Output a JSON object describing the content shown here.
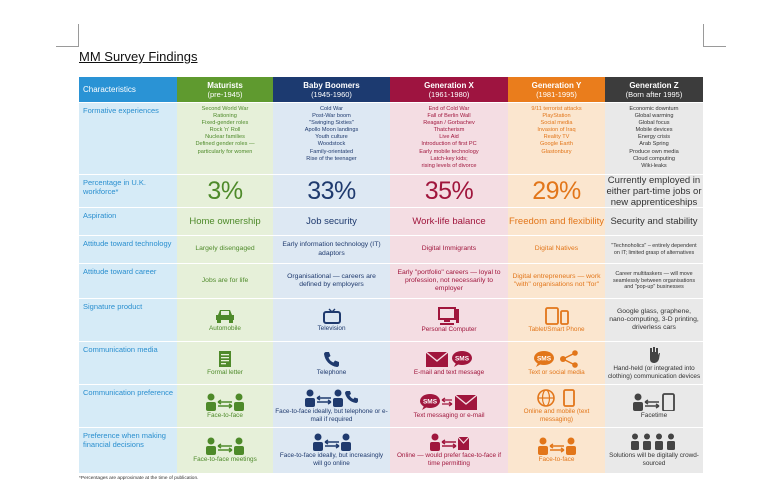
{
  "document": {
    "title": "MM Survey Findings",
    "footnote": "*Percentages are approximate at the time of publication."
  },
  "colors": {
    "label_blue": "#2a93d5",
    "maturists": "#5f9a2f",
    "baby_boomers": "#1c3a70",
    "generation_x": "#9e1440",
    "generation_y": "#ea7d1c",
    "generation_z": "#3c3c3c"
  },
  "table": {
    "row_labels": {
      "characteristics": "Characteristics",
      "formative": "Formative experiences",
      "percentage": "Percentage in U.K. workforce*",
      "aspiration": "Aspiration",
      "technology": "Attitude toward technology",
      "career": "Attitude toward career",
      "product": "Signature product",
      "media": "Communication media",
      "comm_pref": "Communication preference",
      "financial": "Preference when making financial decisions"
    },
    "generations": {
      "maturists": {
        "name": "Maturists",
        "years": "(pre-1945)",
        "formative": [
          "Second World War",
          "Rationing",
          "Fixed-gender roles",
          "Rock 'n' Roll",
          "Nuclear families",
          "Defined gender roles —",
          "particularly for women"
        ],
        "percentage": "3%",
        "aspiration": "Home ownership",
        "technology": "Largely disengaged",
        "career": "Jobs are for life",
        "product": "Automobile",
        "media": "Formal letter",
        "comm_pref": "Face-to-face",
        "financial": "Face-to-face meetings"
      },
      "baby_boomers": {
        "name": "Baby Boomers",
        "years": "(1945-1960)",
        "formative": [
          "Cold War",
          "Post-War boom",
          "\"Swinging Sixties\"",
          "Apollo Moon landings",
          "Youth culture",
          "Woodstock",
          "Family-orientated",
          "Rise of the teenager"
        ],
        "percentage": "33%",
        "aspiration": "Job security",
        "technology": "Early information technology (IT) adaptors",
        "career": "Organisational — careers are defined by employers",
        "product": "Television",
        "media": "Telephone",
        "comm_pref": "Face-to-face ideally, but telephone or e-mail if required",
        "financial": "Face-to-face ideally, but increasingly will go online"
      },
      "generation_x": {
        "name": "Generation X",
        "years": "(1961-1980)",
        "formative": [
          "End of Cold War",
          "Fall of Berlin Wall",
          "Reagan / Gorbachev",
          "Thatcherism",
          "Live Aid",
          "Introduction of first PC",
          "Early mobile technology",
          "Latch-key kids;",
          "rising levels of divorce"
        ],
        "percentage": "35%",
        "aspiration": "Work-life balance",
        "technology": "Digital Immigrants",
        "career": "Early \"portfolio\" careers — loyal to profession, not necessarily to employer",
        "product": "Personal Computer",
        "media": "E-mail and text message",
        "comm_pref": "Text messaging or e-mail",
        "financial": "Online — would prefer face-to-face if time permitting"
      },
      "generation_y": {
        "name": "Generation Y",
        "years": "(1981-1995)",
        "formative": [
          "9/11 terrorist attacks",
          "PlayStation",
          "Social media",
          "Invasion of Iraq",
          "Reality TV",
          "Google Earth",
          "Glastonbury"
        ],
        "percentage": "29%",
        "aspiration": "Freedom and flexibility",
        "technology": "Digital Natives",
        "career": "Digital entrepreneurs — work \"with\" organisations not \"for\"",
        "product": "Tablet/Smart Phone",
        "media": "Text or social media",
        "comm_pref": "Online and mobile (text messaging)",
        "financial": "Face-to-face"
      },
      "generation_z": {
        "name": "Generation Z",
        "years": "(Born after 1995)",
        "formative": [
          "Economic downturn",
          "Global warming",
          "Global focus",
          "Mobile devices",
          "Energy crisis",
          "Arab Spring",
          "Produce own media",
          "Cloud computing",
          "Wiki-leaks"
        ],
        "percentage": "Currently employed in either part-time jobs or new apprenticeships",
        "aspiration": "Security and stability",
        "technology": "\"Technoholics\" – entirely dependent on IT; limited grasp of alternatives",
        "career": "Career multitaskers — will move seamlessly between organisations and \"pop-up\" businesses",
        "product": "Google glass, graphene, nano-computing, 3-D printing, driverless cars",
        "media": "Hand-held (or integrated into clothing) communication devices",
        "comm_pref": "Facetime",
        "financial": "Solutions will be digitally crowd-sourced"
      }
    }
  }
}
